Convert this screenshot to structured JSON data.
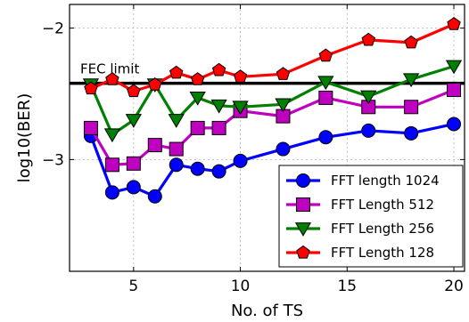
{
  "chart_data": {
    "type": "line",
    "title": "",
    "xlabel": "No. of TS",
    "ylabel": "log10(BER)",
    "xlim": [
      2,
      20.5
    ],
    "ylim": [
      -3.85,
      -1.82
    ],
    "x_ticks": [
      5,
      10,
      15,
      20
    ],
    "y_ticks": [
      -3,
      -2
    ],
    "y_tick_labels": [
      "−3",
      "−2"
    ],
    "grid": true,
    "legend_position": "lower-right",
    "reference_line": {
      "label": "FEC limit",
      "y": -2.42,
      "color": "#000000"
    },
    "series": [
      {
        "name": "FFT length 1024",
        "color": "#0000ff",
        "marker": "circle",
        "x": [
          3,
          4,
          5,
          6,
          7,
          8,
          9,
          10,
          12,
          14,
          16,
          18,
          20
        ],
        "y": [
          -2.82,
          -3.25,
          -3.21,
          -3.28,
          -3.04,
          -3.07,
          -3.09,
          -3.01,
          -2.92,
          -2.83,
          -2.78,
          -2.8,
          -2.73
        ]
      },
      {
        "name": "FFT Length 512",
        "color": "#c000c0",
        "marker": "square",
        "x": [
          3,
          4,
          5,
          6,
          7,
          8,
          9,
          10,
          12,
          14,
          16,
          18,
          20
        ],
        "y": [
          -2.76,
          -3.04,
          -3.03,
          -2.89,
          -2.92,
          -2.76,
          -2.76,
          -2.63,
          -2.67,
          -2.53,
          -2.6,
          -2.6,
          -2.47
        ]
      },
      {
        "name": "FFT Length 256",
        "color": "#008000",
        "marker": "triangle-down",
        "x": [
          3,
          4,
          5,
          6,
          7,
          8,
          9,
          10,
          12,
          14,
          16,
          18,
          20
        ],
        "y": [
          -2.43,
          -2.81,
          -2.7,
          -2.43,
          -2.7,
          -2.53,
          -2.59,
          -2.6,
          -2.58,
          -2.41,
          -2.52,
          -2.39,
          -2.29
        ]
      },
      {
        "name": "FFT Length 128",
        "color": "#ff0000",
        "marker": "pentagon",
        "x": [
          3,
          4,
          5,
          6,
          7,
          8,
          9,
          10,
          12,
          14,
          16,
          18,
          20
        ],
        "y": [
          -2.46,
          -2.39,
          -2.48,
          -2.43,
          -2.34,
          -2.39,
          -2.32,
          -2.37,
          -2.35,
          -2.21,
          -2.09,
          -2.11,
          -1.97
        ]
      }
    ]
  }
}
